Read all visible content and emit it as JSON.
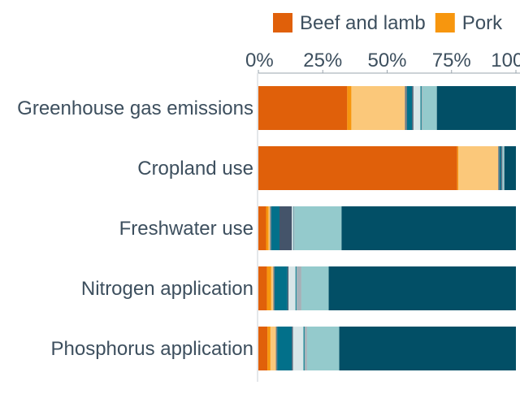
{
  "chart_data": {
    "type": "bar",
    "orientation": "horizontal",
    "stacked": true,
    "categories": [
      "Greenhouse gas emissions",
      "Cropland use",
      "Freshwater use",
      "Nitrogen application",
      "Phosphorus application"
    ],
    "xlim": [
      0,
      100
    ],
    "x_ticks": [
      "0%",
      "25%",
      "50%",
      "75%",
      "100%"
    ],
    "legend_position": "top",
    "grid": false,
    "series": [
      {
        "name": "Beef and lamb",
        "color": "#e0600a",
        "values": [
          34.5,
          77.2,
          3.0,
          3.3,
          3.5
        ]
      },
      {
        "name": "Pork",
        "color": "#f7960e",
        "values": [
          1.6,
          0.4,
          1.0,
          1.7,
          1.2
        ]
      },
      {
        "color": "#fbc87a",
        "values": [
          20.8,
          15.5,
          0.5,
          0.8,
          2.1
        ]
      },
      {
        "color": "#6e7a82",
        "values": [
          0.8,
          0.5,
          0.5,
          0.5,
          0.5
        ]
      },
      {
        "color": "#02708a",
        "values": [
          2.0,
          0.6,
          3.2,
          5.0,
          5.7
        ]
      },
      {
        "color": "#44546a",
        "values": [
          0.5,
          0.4,
          4.8,
          0.4,
          0.4
        ]
      },
      {
        "color": "#d8e6e8",
        "values": [
          2.7,
          0.2,
          0.5,
          2.7,
          4.1
        ]
      },
      {
        "color": "#2b8d9b",
        "values": [
          0.5,
          0.2,
          0.2,
          0.5,
          0.5
        ]
      },
      {
        "color": "#a5b0b8",
        "values": [
          0.3,
          0.2,
          0.3,
          1.8,
          0.9
        ]
      },
      {
        "color": "#94cacc",
        "values": [
          5.6,
          0.3,
          18.3,
          10.6,
          12.5
        ]
      },
      {
        "color": "#024f66",
        "values": [
          30.7,
          4.5,
          67.7,
          72.7,
          68.6
        ]
      }
    ]
  }
}
